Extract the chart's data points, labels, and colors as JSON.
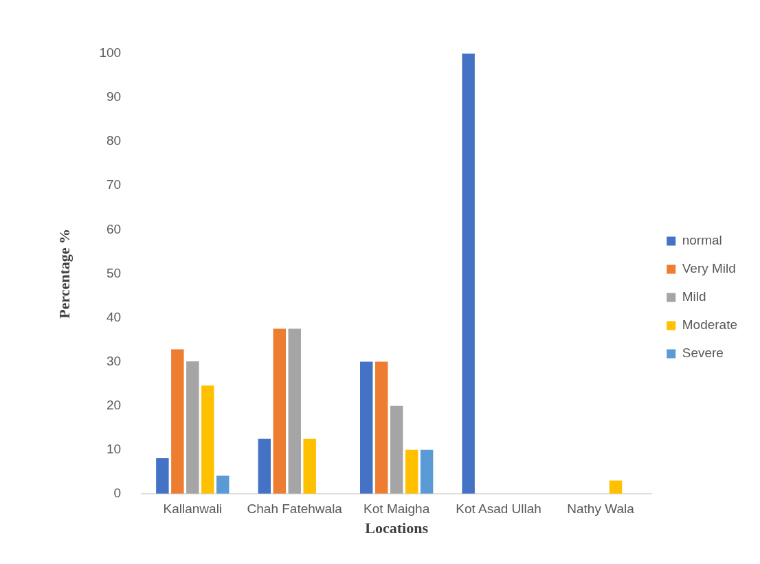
{
  "chart_data": {
    "type": "bar",
    "xlabel": "Locations",
    "ylabel": "Percentage %",
    "categories": [
      "Kallanwali",
      "Chah Fatehwala",
      "Kot Maigha",
      "Kot Asad Ullah",
      "Nathy Wala"
    ],
    "series": [
      {
        "name": "normal",
        "color": "#4472c4",
        "values": [
          8.1,
          12.5,
          30,
          100,
          0
        ]
      },
      {
        "name": "Very Mild",
        "color": "#ed7d31",
        "values": [
          32.8,
          37.5,
          30,
          0,
          0
        ]
      },
      {
        "name": "Mild",
        "color": "#a5a5a5",
        "values": [
          30.1,
          37.5,
          20,
          0,
          0
        ]
      },
      {
        "name": "Moderate",
        "color": "#ffc000",
        "values": [
          24.6,
          12.5,
          10,
          0,
          3
        ]
      },
      {
        "name": "Severe",
        "color": "#5b9bd5",
        "values": [
          4.1,
          0,
          10,
          0,
          0
        ]
      }
    ],
    "ylim": [
      0,
      100
    ],
    "yticks": [
      0,
      10,
      20,
      30,
      40,
      50,
      60,
      70,
      80,
      90,
      100
    ],
    "grid": false,
    "legend": "right"
  }
}
